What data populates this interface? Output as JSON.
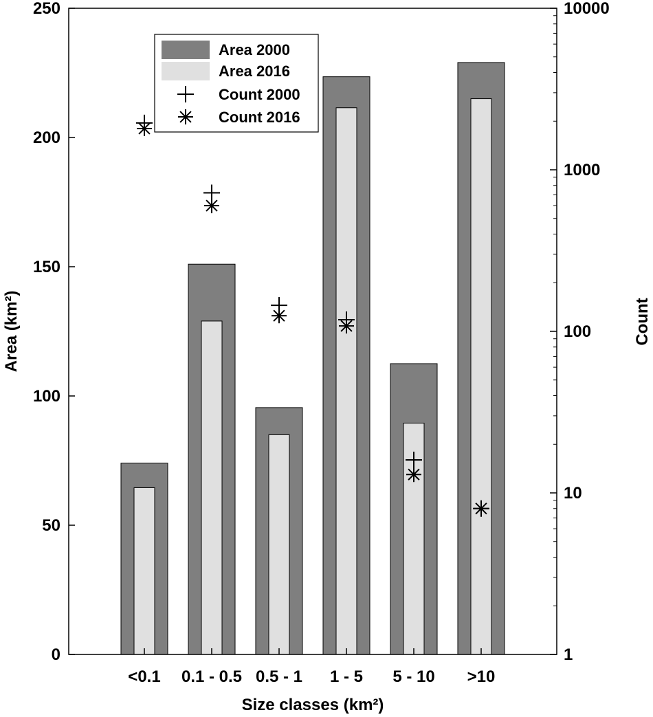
{
  "chart_data": {
    "type": "bar",
    "xlabel": "Size classes (km²)",
    "ylabel_left": "Area (km²)",
    "ylabel_right": "Count",
    "categories": [
      "<0.1",
      "0.1 - 0.5",
      "0.5 - 1",
      "1 - 5",
      "5 - 10",
      ">10"
    ],
    "ylim_left": [
      0,
      250
    ],
    "yticks_left": [
      0,
      50,
      100,
      150,
      200,
      250
    ],
    "ylim_right": [
      1,
      10000
    ],
    "yticks_right": [
      1,
      10,
      100,
      1000,
      10000
    ],
    "yscale_right": "log",
    "grid": false,
    "legend_position": "top-left",
    "bar_series": [
      {
        "name": "Area 2000",
        "color": "#7f7f7f",
        "values": [
          74,
          151,
          95.5,
          223.5,
          112.5,
          229
        ]
      },
      {
        "name": "Area 2016",
        "color": "#e0e0e0",
        "values": [
          64.5,
          129,
          85,
          211.5,
          89.5,
          215
        ]
      }
    ],
    "count_series": [
      {
        "name": "Count 2000",
        "marker": "plus",
        "values": [
          1950,
          720,
          145,
          118,
          16,
          8
        ]
      },
      {
        "name": "Count 2016",
        "marker": "asterisk",
        "values": [
          1800,
          600,
          125,
          108,
          13,
          8
        ]
      }
    ]
  }
}
